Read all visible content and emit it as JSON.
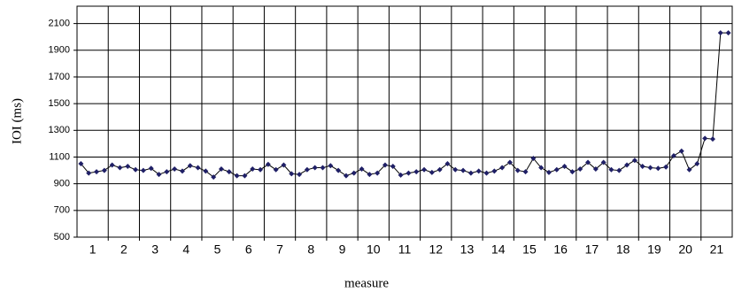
{
  "chart_data": {
    "type": "line",
    "x_label": "measure",
    "y_label": "IOI (ms)",
    "x": [
      0.625,
      0.875,
      1.125,
      1.375,
      1.625,
      1.875,
      2.125,
      2.375,
      2.625,
      2.875,
      3.125,
      3.375,
      3.625,
      3.875,
      4.125,
      4.375,
      4.625,
      4.875,
      5.125,
      5.375,
      5.625,
      5.875,
      6.125,
      6.375,
      6.625,
      6.875,
      7.125,
      7.375,
      7.625,
      7.875,
      8.125,
      8.375,
      8.625,
      8.875,
      9.125,
      9.375,
      9.625,
      9.875,
      10.125,
      10.375,
      10.625,
      10.875,
      11.125,
      11.375,
      11.625,
      11.875,
      12.125,
      12.375,
      12.625,
      12.875,
      13.125,
      13.375,
      13.625,
      13.875,
      14.125,
      14.375,
      14.625,
      14.875,
      15.125,
      15.375,
      15.625,
      15.875,
      16.125,
      16.375,
      16.625,
      16.875,
      17.125,
      17.375,
      17.625,
      17.875,
      18.125,
      18.375,
      18.625,
      18.875,
      19.125,
      19.375,
      19.625,
      19.875,
      20.125,
      20.375,
      20.625,
      20.875,
      21.125,
      21.375
    ],
    "series": [
      {
        "name": "IOI",
        "color": "#1f1f66",
        "values": [
          1050,
          980,
          990,
          1000,
          1040,
          1020,
          1030,
          1005,
          1000,
          1015,
          970,
          990,
          1010,
          995,
          1035,
          1020,
          995,
          950,
          1010,
          990,
          960,
          960,
          1010,
          1005,
          1045,
          1005,
          1040,
          975,
          970,
          1005,
          1020,
          1020,
          1035,
          1000,
          960,
          980,
          1010,
          970,
          980,
          1040,
          1030,
          965,
          980,
          990,
          1005,
          985,
          1005,
          1050,
          1005,
          1000,
          980,
          995,
          980,
          995,
          1020,
          1060,
          1000,
          990,
          1090,
          1020,
          985,
          1005,
          1030,
          990,
          1010,
          1060,
          1010,
          1060,
          1005,
          1000,
          1040,
          1075,
          1030,
          1020,
          1015,
          1025,
          1110,
          1145,
          1005,
          1050,
          1240,
          1235,
          2030,
          2030
        ]
      }
    ],
    "xlim": [
      0.5,
      21.5
    ],
    "xticks": [
      1,
      2,
      3,
      4,
      5,
      6,
      7,
      8,
      9,
      10,
      11,
      12,
      13,
      14,
      15,
      16,
      17,
      18,
      19,
      20,
      21
    ],
    "ylim": [
      500,
      2230
    ],
    "yticks": [
      500,
      700,
      900,
      1100,
      1300,
      1500,
      1700,
      1900,
      2100
    ],
    "grid": true
  }
}
